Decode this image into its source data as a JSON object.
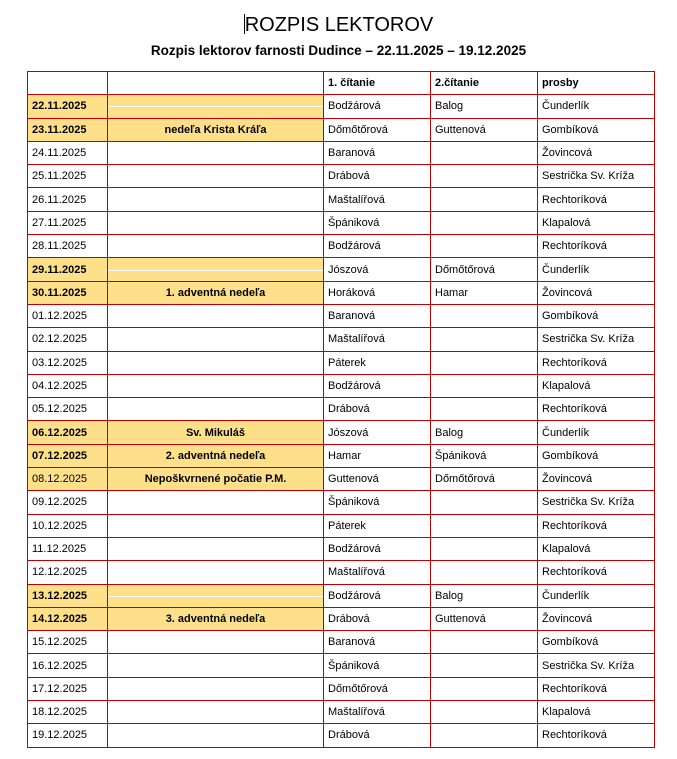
{
  "title": "ROZPIS LEKTOROV",
  "subtitle": "Rozpis lektorov farnosti Dudince – 22.11.2025 – 19.12.2025",
  "colors": {
    "border": "#c00000",
    "highlight": "#ffe08a"
  },
  "table": {
    "headers": [
      "",
      "",
      "1. čítanie",
      "2.čítanie",
      "prosby"
    ],
    "rows": [
      {
        "date": "22.11.2025",
        "occasion": "",
        "first": "Bodžárová",
        "second": "Balog",
        "prayers": "Čunderlík",
        "highlight": true,
        "bold": true,
        "line": true
      },
      {
        "date": "23.11.2025",
        "occasion": "nedeľa Krista Kráľa",
        "first": "Dőmőtőrová",
        "second": "Guttenová",
        "prayers": "Gombíková",
        "highlight": true,
        "bold": true
      },
      {
        "date": "24.11.2025",
        "occasion": "",
        "first": "Baranová",
        "second": "",
        "prayers": "Žovincová"
      },
      {
        "date": "25.11.2025",
        "occasion": "",
        "first": "Drábová",
        "second": "",
        "prayers": "Sestrička Sv. Kríža"
      },
      {
        "date": "26.11.2025",
        "occasion": "",
        "first": "Maštalířová",
        "second": "",
        "prayers": "Rechtoríková"
      },
      {
        "date": "27.11.2025",
        "occasion": "",
        "first": "Špániková",
        "second": "",
        "prayers": "Klapalová"
      },
      {
        "date": "28.11.2025",
        "occasion": "",
        "first": "Bodžárová",
        "second": "",
        "prayers": "Rechtoríková"
      },
      {
        "date": "29.11.2025",
        "occasion": "",
        "first": "Jószová",
        "second": "Dőmőtőrová",
        "prayers": "Čunderlík",
        "highlight": true,
        "bold": true,
        "line": true
      },
      {
        "date": "30.11.2025",
        "occasion": "1. adventná nedeľa",
        "first": "Horáková",
        "second": "Hamar",
        "prayers": "Žovincová",
        "highlight": true,
        "bold": true
      },
      {
        "date": "01.12.2025",
        "occasion": "",
        "first": "Baranová",
        "second": "",
        "prayers": "Gombíková"
      },
      {
        "date": "02.12.2025",
        "occasion": "",
        "first": "Maštalířová",
        "second": "",
        "prayers": "Sestrička Sv. Kríža"
      },
      {
        "date": "03.12.2025",
        "occasion": "",
        "first": "Páterek",
        "second": "",
        "prayers": "Rechtoríková"
      },
      {
        "date": "04.12.2025",
        "occasion": "",
        "first": "Bodžárová",
        "second": "",
        "prayers": "Klapalová"
      },
      {
        "date": "05.12.2025",
        "occasion": "",
        "first": "Drábová",
        "second": "",
        "prayers": "Rechtoríková"
      },
      {
        "date": "06.12.2025",
        "occasion": "Sv. Mikuláš",
        "first": "Jószová",
        "second": "Balog",
        "prayers": "Čunderlík",
        "highlight": true,
        "bold": true
      },
      {
        "date": "07.12.2025",
        "occasion": "2. adventná nedeľa",
        "first": "Hamar",
        "second": "Špániková",
        "prayers": "Gombíková",
        "highlight": true,
        "bold": true
      },
      {
        "date": "08.12.2025",
        "occasion": "Nepoškvrnené počatie P.M.",
        "first": "Guttenová",
        "second": "Dőmőtőrová",
        "prayers": "Žovincová",
        "highlight": true
      },
      {
        "date": "09.12.2025",
        "occasion": "",
        "first": "Špániková",
        "second": "",
        "prayers": "Sestrička Sv. Kríža"
      },
      {
        "date": "10.12.2025",
        "occasion": "",
        "first": "Páterek",
        "second": "",
        "prayers": "Rechtoríková"
      },
      {
        "date": "11.12.2025",
        "occasion": "",
        "first": "Bodžárová",
        "second": "",
        "prayers": "Klapalová"
      },
      {
        "date": "12.12.2025",
        "occasion": "",
        "first": "Maštalířová",
        "second": "",
        "prayers": "Rechtoríková"
      },
      {
        "date": "13.12.2025",
        "occasion": "",
        "first": "Bodžárová",
        "second": "Balog",
        "prayers": "Čunderlík",
        "highlight": true,
        "bold": true,
        "line": true
      },
      {
        "date": "14.12.2025",
        "occasion": "3. adventná nedeľa",
        "first": "Drábová",
        "second": "Guttenová",
        "prayers": "Žovincová",
        "highlight": true,
        "bold": true
      },
      {
        "date": "15.12.2025",
        "occasion": "",
        "first": "Baranová",
        "second": "",
        "prayers": "Gombíková"
      },
      {
        "date": "16.12.2025",
        "occasion": "",
        "first": "Špániková",
        "second": "",
        "prayers": "Sestrička Sv. Kríža"
      },
      {
        "date": "17.12.2025",
        "occasion": "",
        "first": "Dőmőtőrová",
        "second": "",
        "prayers": "Rechtoríková"
      },
      {
        "date": "18.12.2025",
        "occasion": "",
        "first": "Maštalířová",
        "second": "",
        "prayers": "Klapalová"
      },
      {
        "date": "19.12.2025",
        "occasion": "",
        "first": "Drábová",
        "second": "",
        "prayers": "Rechtoríková"
      }
    ]
  }
}
